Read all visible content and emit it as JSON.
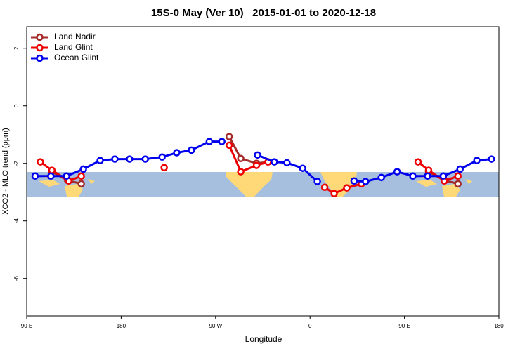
{
  "chart_data": {
    "type": "line",
    "title": "15S-0 May (Ver 10)   2015-01-01 to 2020-12-18",
    "x_label": "Longitude",
    "y_label": "XCO2 - MLO trend (ppm)",
    "xlim": [
      90,
      540
    ],
    "xticks": [
      {
        "value": 90,
        "label": "90 E"
      },
      180,
      {
        "value": 270,
        "label": "90 W"
      },
      {
        "value": 360,
        "label": "0"
      },
      {
        "value": 450,
        "label": "90 E"
      },
      {
        "value": 540,
        "label": "180"
      }
    ],
    "ylim": [
      -7.3,
      2.75
    ],
    "yticks": [
      -6,
      -4,
      -2,
      0,
      2
    ],
    "legend": "top-left",
    "series": [
      {
        "name": "Land Nadir",
        "color": "#a52a2a",
        "x": [
          114,
          129,
          142,
          null,
          283,
          294,
          309,
          320,
          null,
          473,
          488,
          501
        ],
        "values": [
          -2.29,
          -2.59,
          -2.71,
          null,
          -1.07,
          -1.83,
          -2.0,
          -1.95,
          null,
          -2.29,
          -2.59,
          -2.71
        ]
      },
      {
        "name": "Land Glint",
        "color": "#ee0000",
        "x": [
          103,
          114,
          130,
          142,
          null,
          221,
          null,
          283,
          294,
          309,
          320,
          null,
          374,
          383,
          395,
          409,
          null,
          463,
          473,
          488,
          501
        ],
        "values": [
          -1.95,
          -2.24,
          -2.61,
          -2.44,
          null,
          -2.15,
          null,
          -1.37,
          -2.29,
          -2.07,
          -1.95,
          null,
          -2.83,
          -3.05,
          -2.85,
          -2.71,
          null,
          -1.95,
          -2.24,
          -2.61,
          -2.44
        ]
      },
      {
        "name": "Ocean Glint",
        "color": "#0000ee",
        "x": [
          98,
          113,
          128,
          144,
          160,
          174,
          188,
          203,
          219,
          233,
          247,
          264,
          276,
          null,
          310,
          326,
          338,
          353,
          367,
          null,
          402,
          413,
          428,
          443,
          458,
          472,
          487,
          503,
          519,
          533
        ],
        "values": [
          -2.44,
          -2.44,
          -2.44,
          -2.2,
          -1.9,
          -1.85,
          -1.85,
          -1.85,
          -1.78,
          -1.63,
          -1.54,
          -1.24,
          -1.24,
          null,
          -1.71,
          -1.95,
          -1.98,
          -2.17,
          -2.63,
          null,
          -2.61,
          -2.63,
          -2.49,
          -2.29,
          -2.44,
          -2.44,
          -2.44,
          -2.2,
          -1.9,
          -1.85
        ]
      }
    ]
  }
}
